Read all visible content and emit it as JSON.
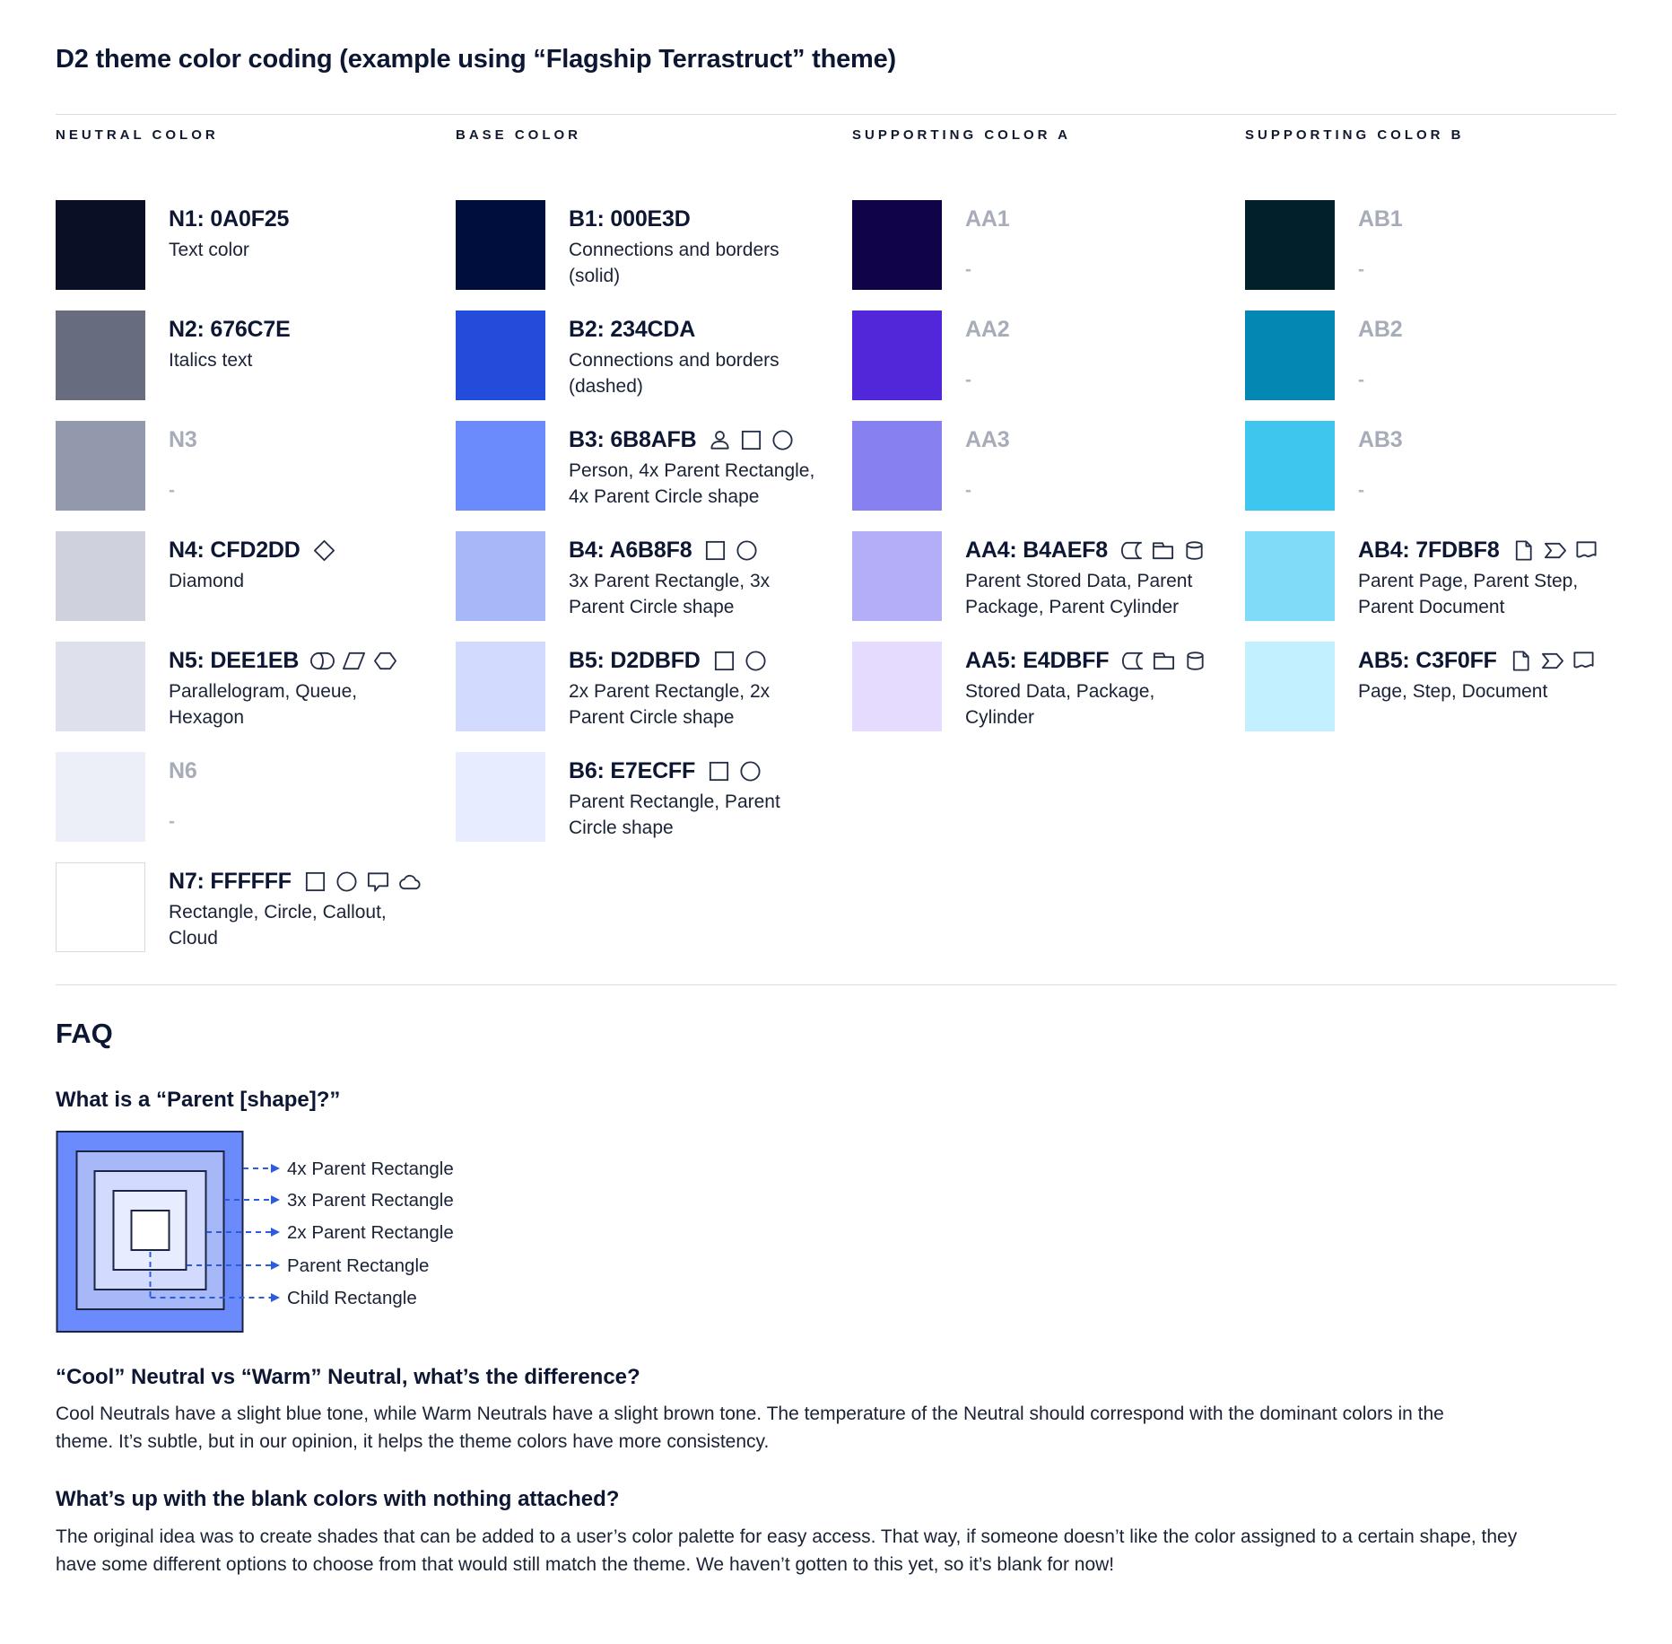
{
  "page": {
    "title": "D2 theme color coding (example using “Flagship Terrastruct” theme)"
  },
  "palette": {
    "columns": [
      {
        "header": "NEUTRAL COLOR",
        "items": [
          {
            "label": "N1: 0A0F25",
            "color": "#0A0F25",
            "muted": false,
            "icons": [],
            "desc": [
              "Text color"
            ]
          },
          {
            "label": "N2: 676C7E",
            "color": "#676C7E",
            "muted": false,
            "icons": [],
            "desc": [
              "Italics text"
            ]
          },
          {
            "label": "N3",
            "color": "#9299AC",
            "muted": true,
            "icons": [],
            "desc": [
              "-"
            ]
          },
          {
            "label": "N4: CFD2DD",
            "color": "#CFD2DD",
            "muted": false,
            "icons": [
              "diamond-icon"
            ],
            "desc": [
              "Diamond"
            ]
          },
          {
            "label": "N5: DEE1EB",
            "color": "#DEE1EB",
            "muted": false,
            "icons": [
              "queue-icon",
              "parallelogram-icon",
              "hexagon-icon"
            ],
            "desc": [
              "Parallelogram, Queue,",
              "Hexagon"
            ]
          },
          {
            "label": "N6",
            "color": "#ECEFF7",
            "muted": true,
            "icons": [],
            "desc": [
              "-"
            ]
          },
          {
            "label": "N7: FFFFFF",
            "color": "#FFFFFF",
            "muted": false,
            "icons": [
              "rectangle-icon",
              "circle-icon",
              "callout-icon",
              "cloud-icon"
            ],
            "desc": [
              "Rectangle, Circle, Callout,",
              "Cloud"
            ]
          }
        ]
      },
      {
        "header": "BASE COLOR",
        "items": [
          {
            "label": "B1: 000E3D",
            "color": "#000E3D",
            "muted": false,
            "icons": [],
            "desc": [
              "Connections and borders",
              "(solid)"
            ]
          },
          {
            "label": "B2: 234CDA",
            "color": "#234CDA",
            "muted": false,
            "icons": [],
            "desc": [
              "Connections and borders",
              "(dashed)"
            ]
          },
          {
            "label": "B3: 6B8AFB",
            "color": "#6B8AFB",
            "muted": false,
            "icons": [
              "person-icon",
              "rectangle-icon",
              "circle-icon"
            ],
            "desc": [
              "Person, 4x Parent Rectangle,",
              "4x Parent Circle shape"
            ]
          },
          {
            "label": "B4: A6B8F8",
            "color": "#A6B8F8",
            "muted": false,
            "icons": [
              "rectangle-icon",
              "circle-icon"
            ],
            "desc": [
              "3x Parent Rectangle, 3x",
              "Parent Circle shape"
            ]
          },
          {
            "label": "B5: D2DBFD",
            "color": "#D2DBFD",
            "muted": false,
            "icons": [
              "rectangle-icon",
              "circle-icon"
            ],
            "desc": [
              "2x Parent Rectangle, 2x",
              "Parent Circle shape"
            ]
          },
          {
            "label": "B6: E7ECFF",
            "color": "#E7ECFF",
            "muted": false,
            "icons": [
              "rectangle-icon",
              "circle-icon"
            ],
            "desc": [
              "Parent Rectangle, Parent",
              "Circle shape"
            ]
          }
        ]
      },
      {
        "header": "SUPPORTING COLOR A",
        "items": [
          {
            "label": "AA1",
            "color": "#10034A",
            "muted": true,
            "icons": [],
            "desc": [
              "-"
            ]
          },
          {
            "label": "AA2",
            "color": "#5226D9",
            "muted": true,
            "icons": [],
            "desc": [
              "-"
            ]
          },
          {
            "label": "AA3",
            "color": "#8680F0",
            "muted": true,
            "icons": [],
            "desc": [
              "-"
            ]
          },
          {
            "label": "AA4: B4AEF8",
            "color": "#B4AEF8",
            "muted": false,
            "icons": [
              "stored-data-icon",
              "package-icon",
              "cylinder-icon"
            ],
            "desc": [
              "Parent Stored Data, Parent",
              "Package,  Parent Cylinder"
            ]
          },
          {
            "label": "AA5: E4DBFF",
            "color": "#E4DBFF",
            "muted": false,
            "icons": [
              "stored-data-icon",
              "package-icon",
              "cylinder-icon"
            ],
            "desc": [
              "Stored Data, Package,",
              "Cylinder"
            ]
          }
        ]
      },
      {
        "header": "SUPPORTING COLOR B",
        "items": [
          {
            "label": "AB1",
            "color": "#02202B",
            "muted": true,
            "icons": [],
            "desc": [
              "-"
            ]
          },
          {
            "label": "AB2",
            "color": "#0487B2",
            "muted": true,
            "icons": [],
            "desc": [
              "-"
            ]
          },
          {
            "label": "AB3",
            "color": "#3FC6EF",
            "muted": true,
            "icons": [],
            "desc": [
              "-"
            ]
          },
          {
            "label": "AB4: 7FDBF8",
            "color": "#7FDBF8",
            "muted": false,
            "icons": [
              "page-icon",
              "step-icon",
              "document-icon"
            ],
            "desc": [
              "Parent Page, Parent Step,",
              "Parent Document"
            ]
          },
          {
            "label": "AB5: C3F0FF",
            "color": "#C3F0FF",
            "muted": false,
            "icons": [
              "page-icon",
              "step-icon",
              "document-icon"
            ],
            "desc": [
              "Page, Step, Document"
            ]
          }
        ]
      }
    ]
  },
  "faq": {
    "title": "FAQ",
    "q1": "What is a “Parent [shape]?”",
    "diagram": {
      "border_color": "#1B2442",
      "line_color": "#2E5BDE",
      "label_color": "#1A2235",
      "layers": [
        {
          "label": "4x Parent Rectangle",
          "color": "#6B8AFB"
        },
        {
          "label": "3x Parent Rectangle",
          "color": "#A6B8F8"
        },
        {
          "label": "2x Parent Rectangle",
          "color": "#D2DBFD"
        },
        {
          "label": "Parent Rectangle",
          "color": "#E7ECFF"
        },
        {
          "label": "Child Rectangle",
          "color": "#FFFFFF"
        }
      ]
    },
    "q2": "“Cool” Neutral vs “Warm” Neutral, what’s the difference?",
    "a2": [
      "Cool Neutrals have a slight blue tone, while Warm Neutrals have a slight brown tone. The temperature of the Neutral should correspond with the dominant colors in the",
      "theme. It’s subtle, but in our opinion, it helps the theme colors have more consistency."
    ],
    "q3": "What’s up with the blank colors with nothing attached?",
    "a3": [
      "The original idea was to create shades that can be added to a user’s color palette for easy access. That way, if someone doesn’t like the color assigned to a certain shape, they",
      "have some different options to choose from that would still match the theme. We haven’t gotten to this yet, so it’s blank for now!"
    ]
  }
}
